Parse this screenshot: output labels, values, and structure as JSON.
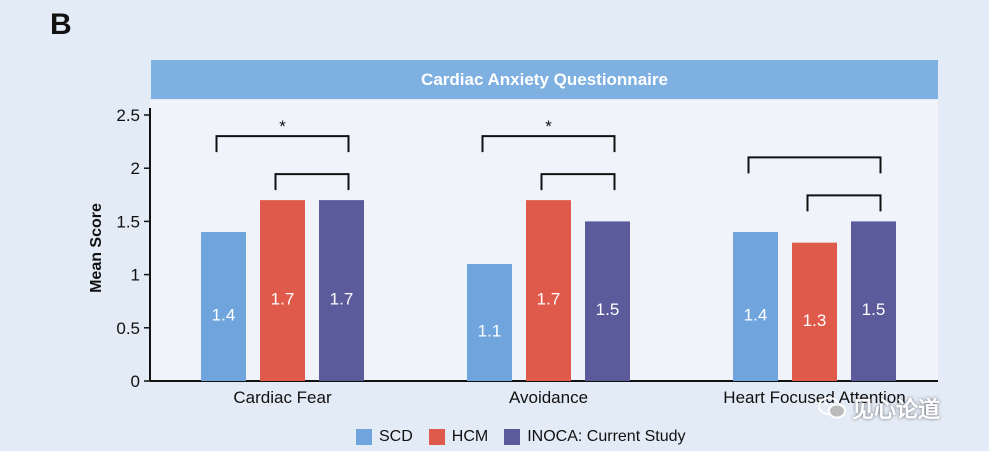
{
  "panel_label": "B",
  "watermark_text": "见心论道",
  "colors": {
    "background": "#e3ebf6",
    "plot_background": "#f0f4fa",
    "title_bar": "#7eb0e1",
    "SCD": "#6fa5dc",
    "HCM": "#e05a4c",
    "INOCA": "#5b5b9c"
  },
  "chart_data": {
    "type": "bar",
    "title": "Cardiac Anxiety Questionnaire",
    "xlabel": "",
    "ylabel": "Mean Score",
    "ylim": [
      0,
      2.5
    ],
    "yticks": [
      "0",
      "0.5",
      "1",
      "1.5",
      "2",
      "2.5"
    ],
    "grid": false,
    "legend_placement": "bottom",
    "categories": [
      "Cardiac Fear",
      "Avoidance",
      "Heart Focused Attention"
    ],
    "series": [
      {
        "name": "SCD",
        "values": [
          1.4,
          1.1,
          1.4
        ],
        "labels": [
          "1.4",
          "1.1",
          "1.4"
        ]
      },
      {
        "name": "HCM",
        "values": [
          1.7,
          1.7,
          1.3
        ],
        "labels": [
          "1.7",
          "1.7",
          "1.3"
        ]
      },
      {
        "name": "INOCA: Current Study",
        "values": [
          1.7,
          1.5,
          1.5
        ],
        "labels": [
          "1.7",
          "1.5",
          "1.5"
        ]
      }
    ],
    "significance_brackets": [
      {
        "category": 0,
        "from_series": 0,
        "to_series": 2,
        "label": "*"
      },
      {
        "category": 0,
        "from_series": 1,
        "to_series": 2,
        "label": ""
      },
      {
        "category": 1,
        "from_series": 0,
        "to_series": 2,
        "label": "*"
      },
      {
        "category": 1,
        "from_series": 1,
        "to_series": 2,
        "label": ""
      },
      {
        "category": 2,
        "from_series": 0,
        "to_series": 2,
        "label": ""
      },
      {
        "category": 2,
        "from_series": 1,
        "to_series": 2,
        "label": ""
      }
    ]
  }
}
